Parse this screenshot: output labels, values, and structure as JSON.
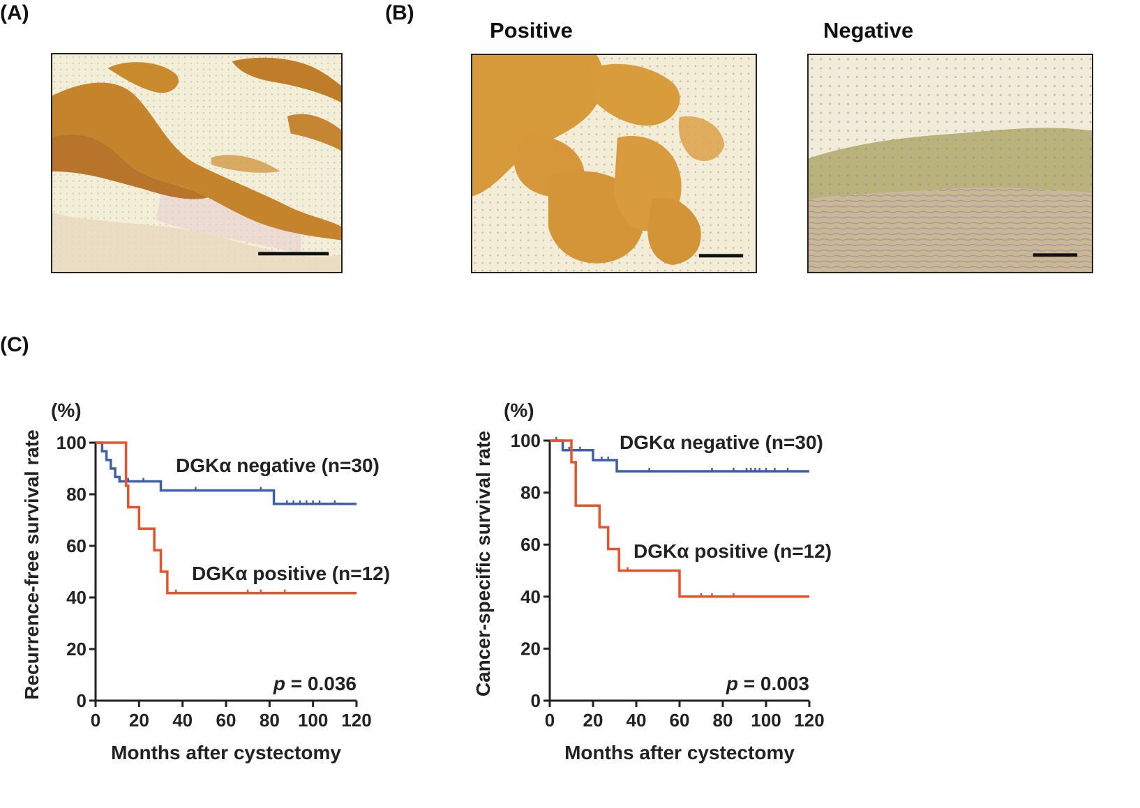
{
  "panels": {
    "a_label": "(A)",
    "b_label": "(B)",
    "c_label": "(C)",
    "b_positive_title": "Positive",
    "b_negative_title": "Negative"
  },
  "micrographs": [
    {
      "id": "A",
      "stain": "positive",
      "scale_bar": true
    },
    {
      "id": "B-positive",
      "stain": "positive",
      "scale_bar": true
    },
    {
      "id": "B-negative",
      "stain": "negative",
      "scale_bar": true
    }
  ],
  "colors": {
    "negative_series": "#3f5fa8",
    "positive_series": "#e8532b",
    "stain_brown": "#c98a2e",
    "background_tissue": "#efe6c8"
  },
  "chart_data": [
    {
      "type": "line",
      "step": true,
      "unit_label": "(%)",
      "ylabel": "Recurrence-free survival rate",
      "xlabel": "Months after cystectomy",
      "xlim": [
        0,
        120
      ],
      "ylim": [
        0,
        100
      ],
      "xticks": [
        0,
        20,
        40,
        60,
        80,
        100,
        120
      ],
      "yticks": [
        0,
        20,
        40,
        60,
        80,
        100
      ],
      "pvalue_prefix": "p",
      "pvalue_text": " = 0.036",
      "series": [
        {
          "name": "DGKα negative (n=30)",
          "color": "#3f5fa8",
          "steps": [
            [
              0,
              100
            ],
            [
              3,
              96.7
            ],
            [
              5,
              93.3
            ],
            [
              7,
              90
            ],
            [
              9,
              86.7
            ],
            [
              11,
              85
            ],
            [
              30,
              81.5
            ],
            [
              82,
              76.3
            ],
            [
              120,
              76.3
            ]
          ],
          "censor": [
            [
              15,
              85
            ],
            [
              22,
              85
            ],
            [
              46,
              81.5
            ],
            [
              76,
              81.5
            ],
            [
              88,
              76.3
            ],
            [
              91,
              76.3
            ],
            [
              94,
              76.3
            ],
            [
              97,
              76.3
            ],
            [
              100,
              76.3
            ],
            [
              103,
              76.3
            ],
            [
              110,
              76.3
            ]
          ]
        },
        {
          "name": "DGKα positive (n=12)",
          "color": "#e8532b",
          "steps": [
            [
              0,
              100
            ],
            [
              14,
              83.3
            ],
            [
              15,
              75
            ],
            [
              20,
              66.7
            ],
            [
              27,
              58.3
            ],
            [
              30,
              50
            ],
            [
              33,
              41.7
            ],
            [
              120,
              41.7
            ]
          ],
          "censor": [
            [
              37,
              41.7
            ],
            [
              70,
              41.7
            ],
            [
              76,
              41.7
            ],
            [
              87,
              41.7
            ]
          ]
        }
      ]
    },
    {
      "type": "line",
      "step": true,
      "unit_label": "(%)",
      "ylabel": "Cancer-specific survival rate",
      "xlabel": "Months after cystectomy",
      "xlim": [
        0,
        120
      ],
      "ylim": [
        0,
        100
      ],
      "xticks": [
        0,
        20,
        40,
        60,
        80,
        100,
        120
      ],
      "yticks": [
        0,
        20,
        40,
        60,
        80,
        100
      ],
      "pvalue_prefix": "p",
      "pvalue_text": " = 0.003",
      "series": [
        {
          "name": "DGKα negative (n=30)",
          "color": "#3f5fa8",
          "steps": [
            [
              0,
              100
            ],
            [
              6,
              96.3
            ],
            [
              20,
              92.5
            ],
            [
              31,
              88.2
            ],
            [
              120,
              88.2
            ]
          ],
          "censor": [
            [
              3,
              100
            ],
            [
              9,
              96.3
            ],
            [
              14,
              96.3
            ],
            [
              24,
              92.5
            ],
            [
              27,
              92.5
            ],
            [
              46,
              88.2
            ],
            [
              75,
              88.2
            ],
            [
              85,
              88.2
            ],
            [
              91,
              88.2
            ],
            [
              93,
              88.2
            ],
            [
              95,
              88.2
            ],
            [
              97,
              88.2
            ],
            [
              100,
              88.2
            ],
            [
              104,
              88.2
            ],
            [
              110,
              88.2
            ]
          ]
        },
        {
          "name": "DGKα positive (n=12)",
          "color": "#e8532b",
          "steps": [
            [
              0,
              100
            ],
            [
              10,
              91.7
            ],
            [
              12,
              75
            ],
            [
              23,
              66.7
            ],
            [
              27,
              58.3
            ],
            [
              32,
              50
            ],
            [
              60,
              40
            ],
            [
              120,
              40
            ]
          ],
          "censor": [
            [
              36,
              50
            ],
            [
              70,
              40
            ],
            [
              75,
              40
            ],
            [
              85,
              40
            ]
          ]
        }
      ]
    }
  ]
}
